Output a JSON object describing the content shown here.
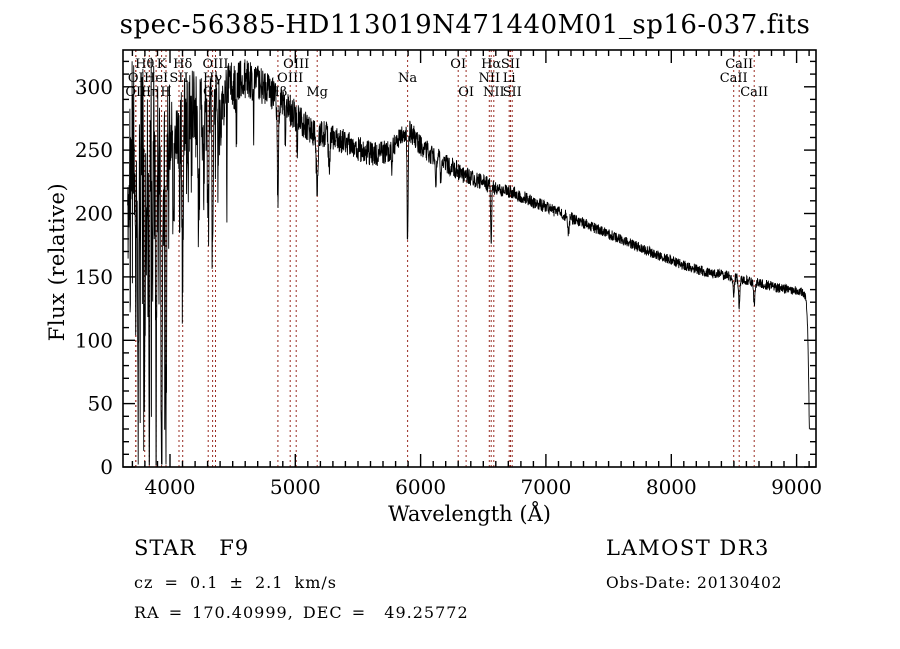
{
  "window": {
    "background": "#ffffff",
    "foreground": "#000000"
  },
  "chart_data": {
    "type": "line",
    "title": "spec-56385-HD113019N471440M01_sp16-037.fits",
    "xlabel": "Wavelength (Å)",
    "ylabel": "Flux (relative)",
    "xlim": [
      3625,
      9155
    ],
    "ylim": [
      0,
      329
    ],
    "x_ticks": [
      4000,
      5000,
      6000,
      7000,
      8000,
      9000
    ],
    "y_ticks": [
      0,
      50,
      100,
      150,
      200,
      250,
      300
    ],
    "x_minor_step": 100,
    "y_minor_step": 10,
    "grid": false,
    "legend": "none",
    "trace_color": "#000000",
    "line_marker_color": "#992b22",
    "spectral_lines": [
      {
        "label": "Hθ",
        "wavelength": 3798,
        "row": 1
      },
      {
        "label": "K",
        "wavelength": 3933,
        "row": 1
      },
      {
        "label": "Hδ",
        "wavelength": 4101,
        "row": 1
      },
      {
        "label": "OIII",
        "wavelength": 4363,
        "row": 1
      },
      {
        "label": "OIII",
        "wavelength": 5007,
        "row": 1
      },
      {
        "label": "OI",
        "wavelength": 6300,
        "row": 1
      },
      {
        "label": "Hα",
        "wavelength": 6563,
        "row": 1
      },
      {
        "label": "SII",
        "wavelength": 6717,
        "row": 1
      },
      {
        "label": "CaII",
        "wavelength": 8542,
        "row": 1
      },
      {
        "label": "OI",
        "wavelength": 3727,
        "row": 2
      },
      {
        "label": "HeI",
        "wavelength": 3889,
        "row": 2
      },
      {
        "label": "SII",
        "wavelength": 4072,
        "row": 2
      },
      {
        "label": "Hγ",
        "wavelength": 4340,
        "row": 2
      },
      {
        "label": "OIII",
        "wavelength": 4959,
        "row": 2
      },
      {
        "label": "Na",
        "wavelength": 5896,
        "row": 2
      },
      {
        "label": "NII",
        "wavelength": 6548,
        "row": 2
      },
      {
        "label": "Li",
        "wavelength": 6707,
        "row": 2
      },
      {
        "label": "CaII",
        "wavelength": 8498,
        "row": 2
      },
      {
        "label": "OII",
        "wavelength": 3727,
        "row": 3
      },
      {
        "label": "Hη",
        "wavelength": 3835,
        "row": 3
      },
      {
        "label": "H",
        "wavelength": 3968,
        "row": 3
      },
      {
        "label": "G",
        "wavelength": 4305,
        "row": 3
      },
      {
        "label": "Hβ",
        "wavelength": 4861,
        "row": 3
      },
      {
        "label": "Mg",
        "wavelength": 5175,
        "row": 3
      },
      {
        "label": "OI",
        "wavelength": 6363,
        "row": 3
      },
      {
        "label": "NII",
        "wavelength": 6584,
        "row": 3
      },
      {
        "label": "SII",
        "wavelength": 6731,
        "row": 3
      },
      {
        "label": "CaII",
        "wavelength": 8662,
        "row": 3
      }
    ],
    "continuum": [
      [
        3660,
        200
      ],
      [
        3680,
        250
      ],
      [
        3700,
        262
      ],
      [
        3740,
        266
      ],
      [
        3780,
        270
      ],
      [
        3820,
        272
      ],
      [
        3860,
        274
      ],
      [
        3900,
        276
      ],
      [
        3940,
        274
      ],
      [
        3980,
        271
      ],
      [
        4020,
        272
      ],
      [
        4060,
        274
      ],
      [
        4100,
        277
      ],
      [
        4150,
        280
      ],
      [
        4200,
        284
      ],
      [
        4250,
        287
      ],
      [
        4300,
        290
      ],
      [
        4350,
        293
      ],
      [
        4400,
        296
      ],
      [
        4450,
        298
      ],
      [
        4500,
        301
      ],
      [
        4550,
        303
      ],
      [
        4600,
        305
      ],
      [
        4650,
        305
      ],
      [
        4700,
        303
      ],
      [
        4750,
        300
      ],
      [
        4800,
        296
      ],
      [
        4850,
        292
      ],
      [
        4900,
        287
      ],
      [
        4950,
        283
      ],
      [
        5000,
        277
      ],
      [
        5050,
        272
      ],
      [
        5100,
        267
      ],
      [
        5150,
        264
      ],
      [
        5200,
        263
      ],
      [
        5250,
        262
      ],
      [
        5300,
        260
      ],
      [
        5350,
        258
      ],
      [
        5400,
        256
      ],
      [
        5450,
        254
      ],
      [
        5500,
        251
      ],
      [
        5550,
        249
      ],
      [
        5600,
        247
      ],
      [
        5650,
        247
      ],
      [
        5700,
        248
      ],
      [
        5750,
        250
      ],
      [
        5800,
        255
      ],
      [
        5850,
        261
      ],
      [
        5890,
        266
      ],
      [
        5930,
        263
      ],
      [
        5980,
        256
      ],
      [
        6030,
        251
      ],
      [
        6080,
        247
      ],
      [
        6130,
        244
      ],
      [
        6180,
        241
      ],
      [
        6230,
        238
      ],
      [
        6280,
        235
      ],
      [
        6330,
        232
      ],
      [
        6380,
        229
      ],
      [
        6430,
        227
      ],
      [
        6480,
        225
      ],
      [
        6530,
        223
      ],
      [
        6580,
        221
      ],
      [
        6630,
        219
      ],
      [
        6680,
        218
      ],
      [
        6730,
        216
      ],
      [
        6780,
        214
      ],
      [
        6830,
        212
      ],
      [
        6880,
        210
      ],
      [
        6930,
        208
      ],
      [
        6980,
        206
      ],
      [
        7050,
        203
      ],
      [
        7120,
        200
      ],
      [
        7190,
        197
      ],
      [
        7260,
        194
      ],
      [
        7330,
        191
      ],
      [
        7400,
        188
      ],
      [
        7470,
        185
      ],
      [
        7540,
        182
      ],
      [
        7610,
        179
      ],
      [
        7680,
        176
      ],
      [
        7750,
        173
      ],
      [
        7820,
        170
      ],
      [
        7890,
        167
      ],
      [
        7960,
        165
      ],
      [
        8030,
        162
      ],
      [
        8100,
        159
      ],
      [
        8170,
        157
      ],
      [
        8240,
        155
      ],
      [
        8310,
        153
      ],
      [
        8380,
        152
      ],
      [
        8450,
        151
      ],
      [
        8520,
        149
      ],
      [
        8590,
        147
      ],
      [
        8660,
        146
      ],
      [
        8730,
        144
      ],
      [
        8800,
        143
      ],
      [
        8870,
        141
      ],
      [
        8940,
        140
      ],
      [
        9010,
        139
      ],
      [
        9050,
        138
      ],
      [
        9075,
        133
      ],
      [
        9088,
        112
      ],
      [
        9096,
        70
      ],
      [
        9102,
        30
      ]
    ],
    "noise_amplitude": [
      [
        3660,
        60
      ],
      [
        3720,
        62
      ],
      [
        3780,
        58
      ],
      [
        3850,
        56
      ],
      [
        3920,
        52
      ],
      [
        3990,
        42
      ],
      [
        4060,
        36
      ],
      [
        4140,
        32
      ],
      [
        4250,
        28
      ],
      [
        4400,
        24
      ],
      [
        4550,
        18
      ],
      [
        4700,
        15
      ],
      [
        4850,
        13
      ],
      [
        5000,
        12
      ],
      [
        5200,
        11
      ],
      [
        5400,
        10
      ],
      [
        5600,
        10
      ],
      [
        5800,
        9
      ],
      [
        6000,
        9
      ],
      [
        6200,
        8
      ],
      [
        6400,
        7
      ],
      [
        6600,
        6
      ],
      [
        6800,
        5.5
      ],
      [
        7000,
        5
      ],
      [
        7300,
        4.5
      ],
      [
        7600,
        4
      ],
      [
        8000,
        4
      ],
      [
        8400,
        4
      ],
      [
        8800,
        4
      ],
      [
        9000,
        3.5
      ],
      [
        9102,
        3
      ]
    ],
    "absorption_lines": [
      [
        3727,
        175,
        4
      ],
      [
        3745,
        235,
        4
      ],
      [
        3762,
        120,
        3
      ],
      [
        3798,
        225,
        4
      ],
      [
        3815,
        130,
        3
      ],
      [
        3835,
        240,
        4
      ],
      [
        3860,
        150,
        3
      ],
      [
        3889,
        235,
        4
      ],
      [
        3910,
        110,
        3
      ],
      [
        3933,
        262,
        5
      ],
      [
        3950,
        90,
        3
      ],
      [
        3968,
        250,
        5
      ],
      [
        4026,
        90,
        3
      ],
      [
        4077,
        70,
        3
      ],
      [
        4101,
        132,
        5
      ],
      [
        4144,
        70,
        3
      ],
      [
        4226,
        88,
        3
      ],
      [
        4271,
        62,
        3
      ],
      [
        4305,
        92,
        6
      ],
      [
        4340,
        135,
        5
      ],
      [
        4383,
        78,
        3
      ],
      [
        4405,
        55,
        3
      ],
      [
        4455,
        45,
        3
      ],
      [
        4530,
        40,
        3
      ],
      [
        4668,
        35,
        3
      ],
      [
        4861,
        78,
        5
      ],
      [
        4920,
        30,
        3
      ],
      [
        5015,
        28,
        3
      ],
      [
        5175,
        44,
        8
      ],
      [
        5270,
        24,
        6
      ],
      [
        5770,
        20,
        4
      ],
      [
        5896,
        90,
        4
      ],
      [
        6122,
        22,
        5
      ],
      [
        6162,
        18,
        4
      ],
      [
        6563,
        50,
        4
      ],
      [
        7180,
        12,
        6
      ],
      [
        8498,
        17,
        5
      ],
      [
        8542,
        21,
        6
      ],
      [
        8662,
        17,
        6
      ]
    ],
    "noise_seed": 11,
    "spectrum_range": [
      3662,
      9102
    ]
  },
  "annotations": {
    "class_line": "STAR   F9",
    "cz_line": "cz = 0.1 ± 2.1 km/s",
    "ra_dec_line": "RA = 170.40999, DEC =  49.25772",
    "survey": "LAMOST DR3",
    "obs_date": "Obs-Date: 20130402"
  }
}
